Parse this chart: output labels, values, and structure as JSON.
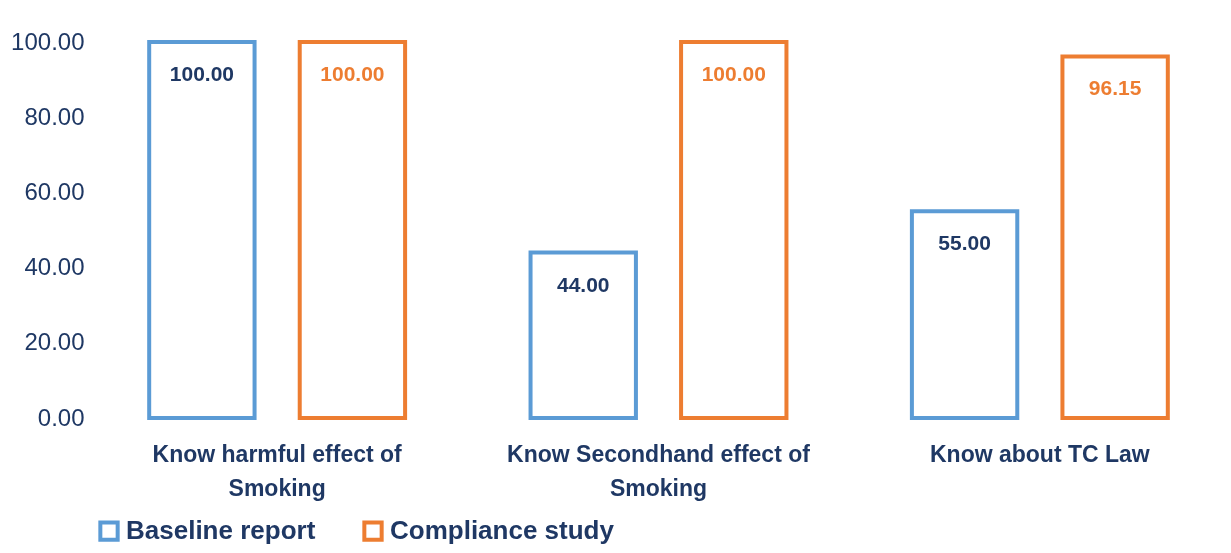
{
  "chart_data": {
    "type": "bar",
    "categories": [
      "Know harmful effect of Smoking",
      "Know Secondhand effect of Smoking",
      "Know about TC Law"
    ],
    "series": [
      {
        "name": "Baseline report",
        "color": "#5b9bd5",
        "values": [
          100,
          44,
          55
        ],
        "value_labels": [
          "100.00",
          "44.00",
          "55.00"
        ]
      },
      {
        "name": "Compliance study",
        "color": "#ed7d31",
        "values": [
          100,
          100,
          96.15
        ],
        "value_labels": [
          "100.00",
          "100.00",
          "96.15"
        ]
      }
    ],
    "ylim": [
      0,
      100
    ],
    "yticks": [
      {
        "value": 0,
        "label": "0.00"
      },
      {
        "value": 20,
        "label": "20.00"
      },
      {
        "value": 40,
        "label": "40.00"
      },
      {
        "value": 60,
        "label": "60.00"
      },
      {
        "value": 80,
        "label": "80.00"
      },
      {
        "value": 100,
        "label": "100.00"
      }
    ],
    "grid": false,
    "legend": "bottom"
  }
}
